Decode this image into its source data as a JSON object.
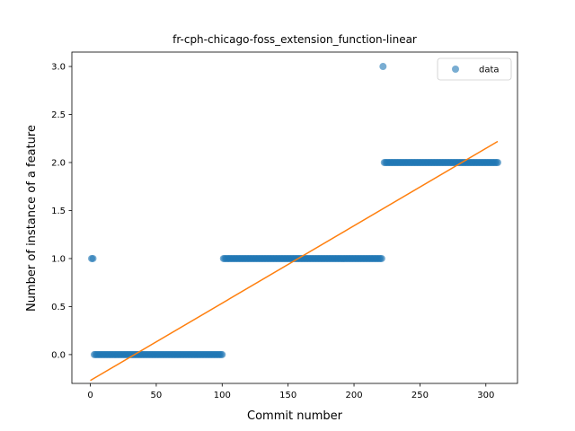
{
  "chart_data": {
    "type": "scatter",
    "title": "fr-cph-chicago-foss_extension_function-linear",
    "xlabel": "Commit number",
    "ylabel": "Number of instance of a feature",
    "xlim": [
      -14,
      324
    ],
    "ylim": [
      -0.3,
      3.15
    ],
    "xticks": [
      0,
      50,
      100,
      150,
      200,
      250,
      300
    ],
    "xtick_labels": [
      "0",
      "50",
      "100",
      "150",
      "200",
      "250",
      "300"
    ],
    "yticks": [
      0.0,
      0.5,
      1.0,
      1.5,
      2.0,
      2.5,
      3.0
    ],
    "ytick_labels": [
      "0.0",
      "0.5",
      "1.0",
      "1.5",
      "2.0",
      "2.5",
      "3.0"
    ],
    "grid": false,
    "legend": {
      "position": "top-right",
      "entries": [
        "data"
      ]
    },
    "series": [
      {
        "name": "data",
        "kind": "scatter",
        "color": "#1f77b4",
        "segments": [
          {
            "x_start": 1,
            "x_end": 2,
            "y": 1
          },
          {
            "x_start": 3,
            "x_end": 100,
            "y": 0
          },
          {
            "x_start": 101,
            "x_end": 221,
            "y": 1
          },
          {
            "x_start": 222,
            "x_end": 222,
            "y": 3
          },
          {
            "x_start": 223,
            "x_end": 309,
            "y": 2
          }
        ]
      },
      {
        "kind": "line",
        "color": "#ff7f0e",
        "x": [
          0,
          309
        ],
        "y": [
          -0.27,
          2.22
        ]
      }
    ]
  }
}
